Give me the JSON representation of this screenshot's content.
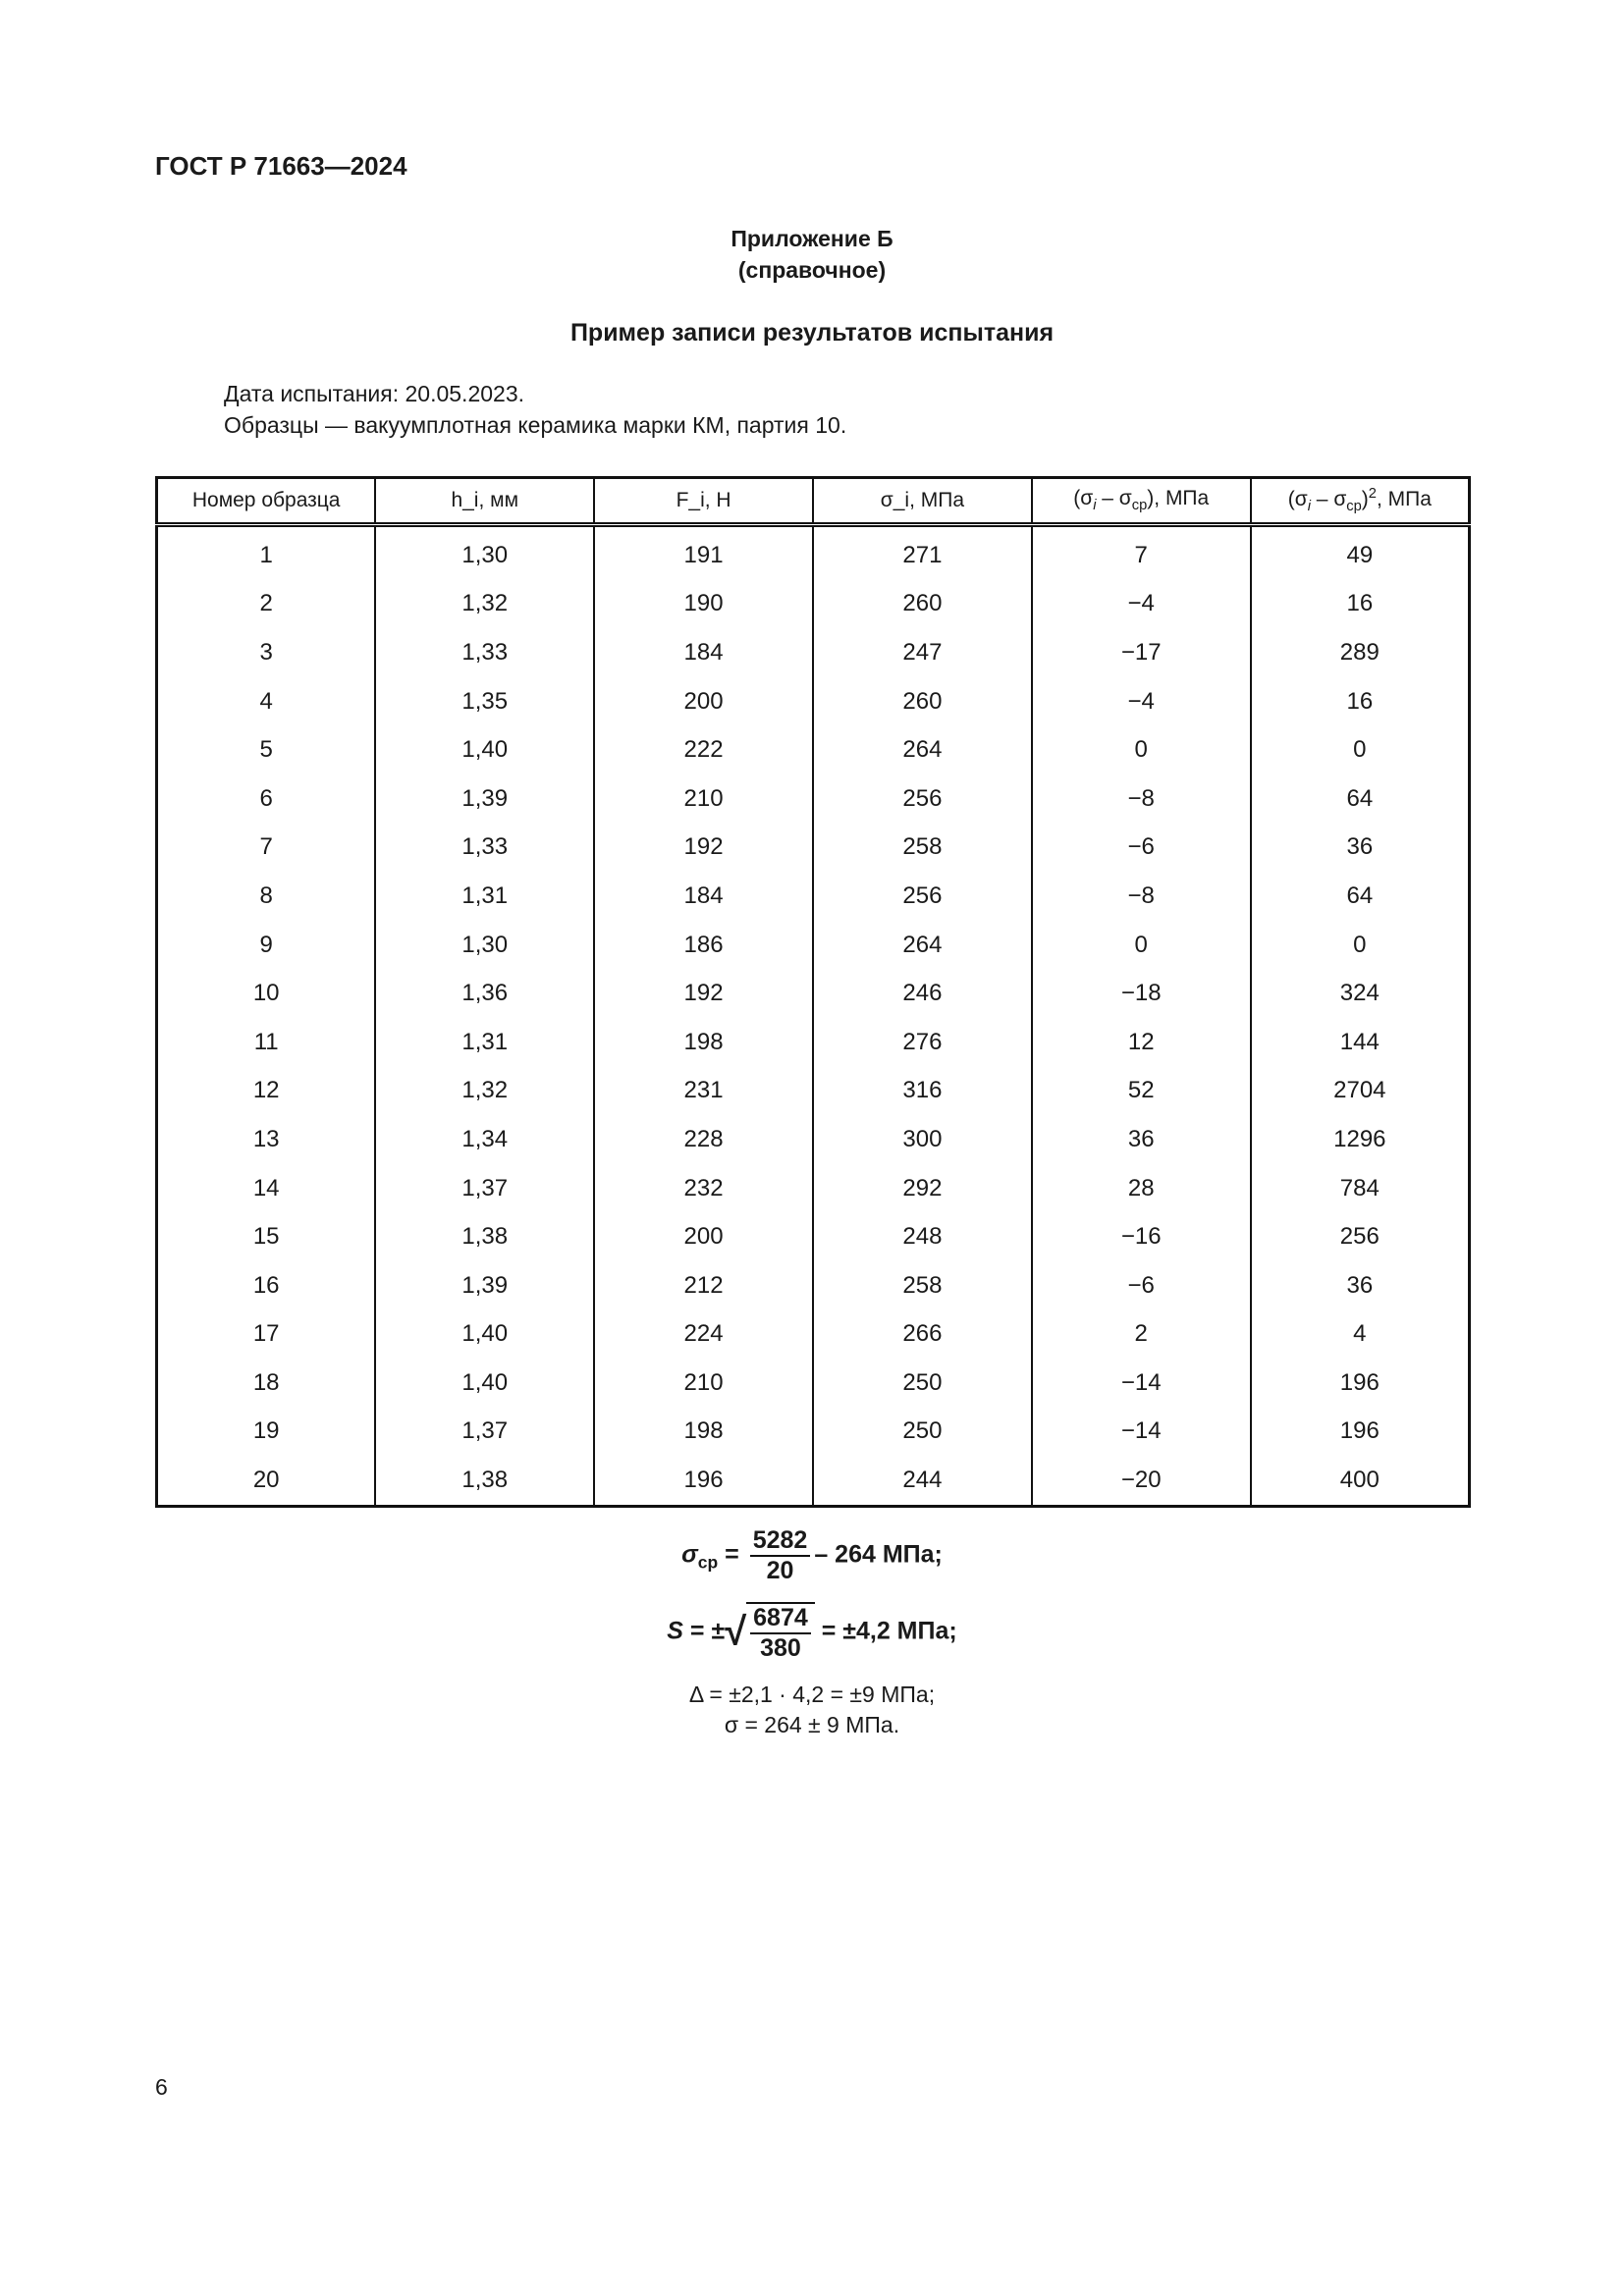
{
  "header": {
    "doc_code": "ГОСТ Р 71663—2024"
  },
  "appendix": {
    "title": "Приложение Б",
    "subtitle": "(справочное)",
    "section_title": "Пример записи результатов испытания"
  },
  "info": {
    "date_line": "Дата испытания: 20.05.2023.",
    "samples_line": "Образцы — вакуумплотная керамика марки КМ, партия 10."
  },
  "table": {
    "headers": [
      "Номер образца",
      "h_i, мм",
      "F_i, Н",
      "σ_i, МПа",
      "(σ_i – σ_ср), МПа",
      "(σ_i – σ_ср)², МПа"
    ],
    "rows": [
      [
        "1",
        "1,30",
        "191",
        "271",
        "7",
        "49"
      ],
      [
        "2",
        "1,32",
        "190",
        "260",
        "−4",
        "16"
      ],
      [
        "3",
        "1,33",
        "184",
        "247",
        "−17",
        "289"
      ],
      [
        "4",
        "1,35",
        "200",
        "260",
        "−4",
        "16"
      ],
      [
        "5",
        "1,40",
        "222",
        "264",
        "0",
        "0"
      ],
      [
        "6",
        "1,39",
        "210",
        "256",
        "−8",
        "64"
      ],
      [
        "7",
        "1,33",
        "192",
        "258",
        "−6",
        "36"
      ],
      [
        "8",
        "1,31",
        "184",
        "256",
        "−8",
        "64"
      ],
      [
        "9",
        "1,30",
        "186",
        "264",
        "0",
        "0"
      ],
      [
        "10",
        "1,36",
        "192",
        "246",
        "−18",
        "324"
      ],
      [
        "11",
        "1,31",
        "198",
        "276",
        "12",
        "144"
      ],
      [
        "12",
        "1,32",
        "231",
        "316",
        "52",
        "2704"
      ],
      [
        "13",
        "1,34",
        "228",
        "300",
        "36",
        "1296"
      ],
      [
        "14",
        "1,37",
        "232",
        "292",
        "28",
        "784"
      ],
      [
        "15",
        "1,38",
        "200",
        "248",
        "−16",
        "256"
      ],
      [
        "16",
        "1,39",
        "212",
        "258",
        "−6",
        "36"
      ],
      [
        "17",
        "1,40",
        "224",
        "266",
        "2",
        "4"
      ],
      [
        "18",
        "1,40",
        "210",
        "250",
        "−14",
        "196"
      ],
      [
        "19",
        "1,37",
        "198",
        "250",
        "−14",
        "196"
      ],
      [
        "20",
        "1,38",
        "196",
        "244",
        "−20",
        "400"
      ]
    ]
  },
  "formulas": {
    "mean": {
      "lhs": "σ",
      "lhs_sub": "ср",
      "num": "5282",
      "den": "20",
      "result": "– 264  МПа;"
    },
    "std": {
      "lhs": "S",
      "pm": "= ±",
      "num": "6874",
      "den": "380",
      "result": "= ±4,2  МПа;"
    },
    "delta": "Δ = ±2,1 · 4,2 = ±9 МПа;",
    "final": "σ = 264 ± 9 МПа."
  },
  "footer": {
    "page_number": "6"
  }
}
